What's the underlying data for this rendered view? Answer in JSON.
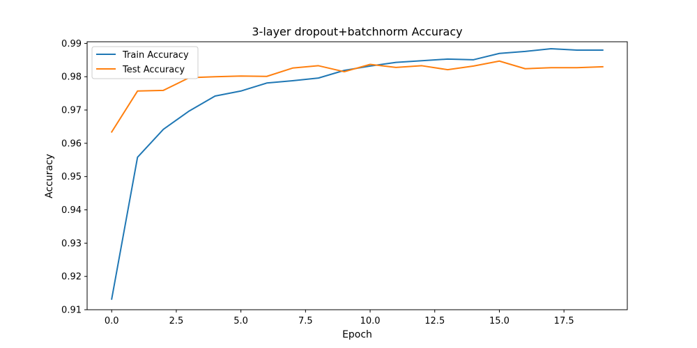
{
  "chart_data": {
    "type": "line",
    "title": "3-layer dropout+batchnorm Accuracy",
    "xlabel": "Epoch",
    "ylabel": "Accuracy",
    "xlim": [
      -0.95,
      19.95
    ],
    "ylim": [
      0.91,
      0.9905
    ],
    "x_ticks": [
      0.0,
      2.5,
      5.0,
      7.5,
      10.0,
      12.5,
      15.0,
      17.5
    ],
    "x_tick_labels": [
      "0.0",
      "2.5",
      "5.0",
      "7.5",
      "10.0",
      "12.5",
      "15.0",
      "17.5"
    ],
    "y_ticks": [
      0.91,
      0.92,
      0.93,
      0.94,
      0.95,
      0.96,
      0.97,
      0.98,
      0.99
    ],
    "y_tick_labels": [
      "0.91",
      "0.92",
      "0.93",
      "0.94",
      "0.95",
      "0.96",
      "0.97",
      "0.98",
      "0.99"
    ],
    "legend_position": "top-left",
    "grid": false,
    "x": [
      0,
      1,
      2,
      3,
      4,
      5,
      6,
      7,
      8,
      9,
      10,
      11,
      12,
      13,
      14,
      15,
      16,
      17,
      18,
      19
    ],
    "series": [
      {
        "name": "Train Accuracy",
        "color": "#1f77b4",
        "values": [
          0.9132,
          0.9558,
          0.9642,
          0.9697,
          0.9742,
          0.9757,
          0.9781,
          0.9788,
          0.9796,
          0.9819,
          0.9832,
          0.9843,
          0.9848,
          0.9853,
          0.9851,
          0.987,
          0.9876,
          0.9884,
          0.988,
          0.988
        ]
      },
      {
        "name": "Test Accuracy",
        "color": "#ff7f0e",
        "values": [
          0.9634,
          0.9757,
          0.9759,
          0.9797,
          0.98,
          0.9802,
          0.9801,
          0.9826,
          0.9833,
          0.9815,
          0.9837,
          0.9828,
          0.9833,
          0.9821,
          0.9832,
          0.9847,
          0.9824,
          0.9827,
          0.9827,
          0.983
        ]
      }
    ]
  }
}
